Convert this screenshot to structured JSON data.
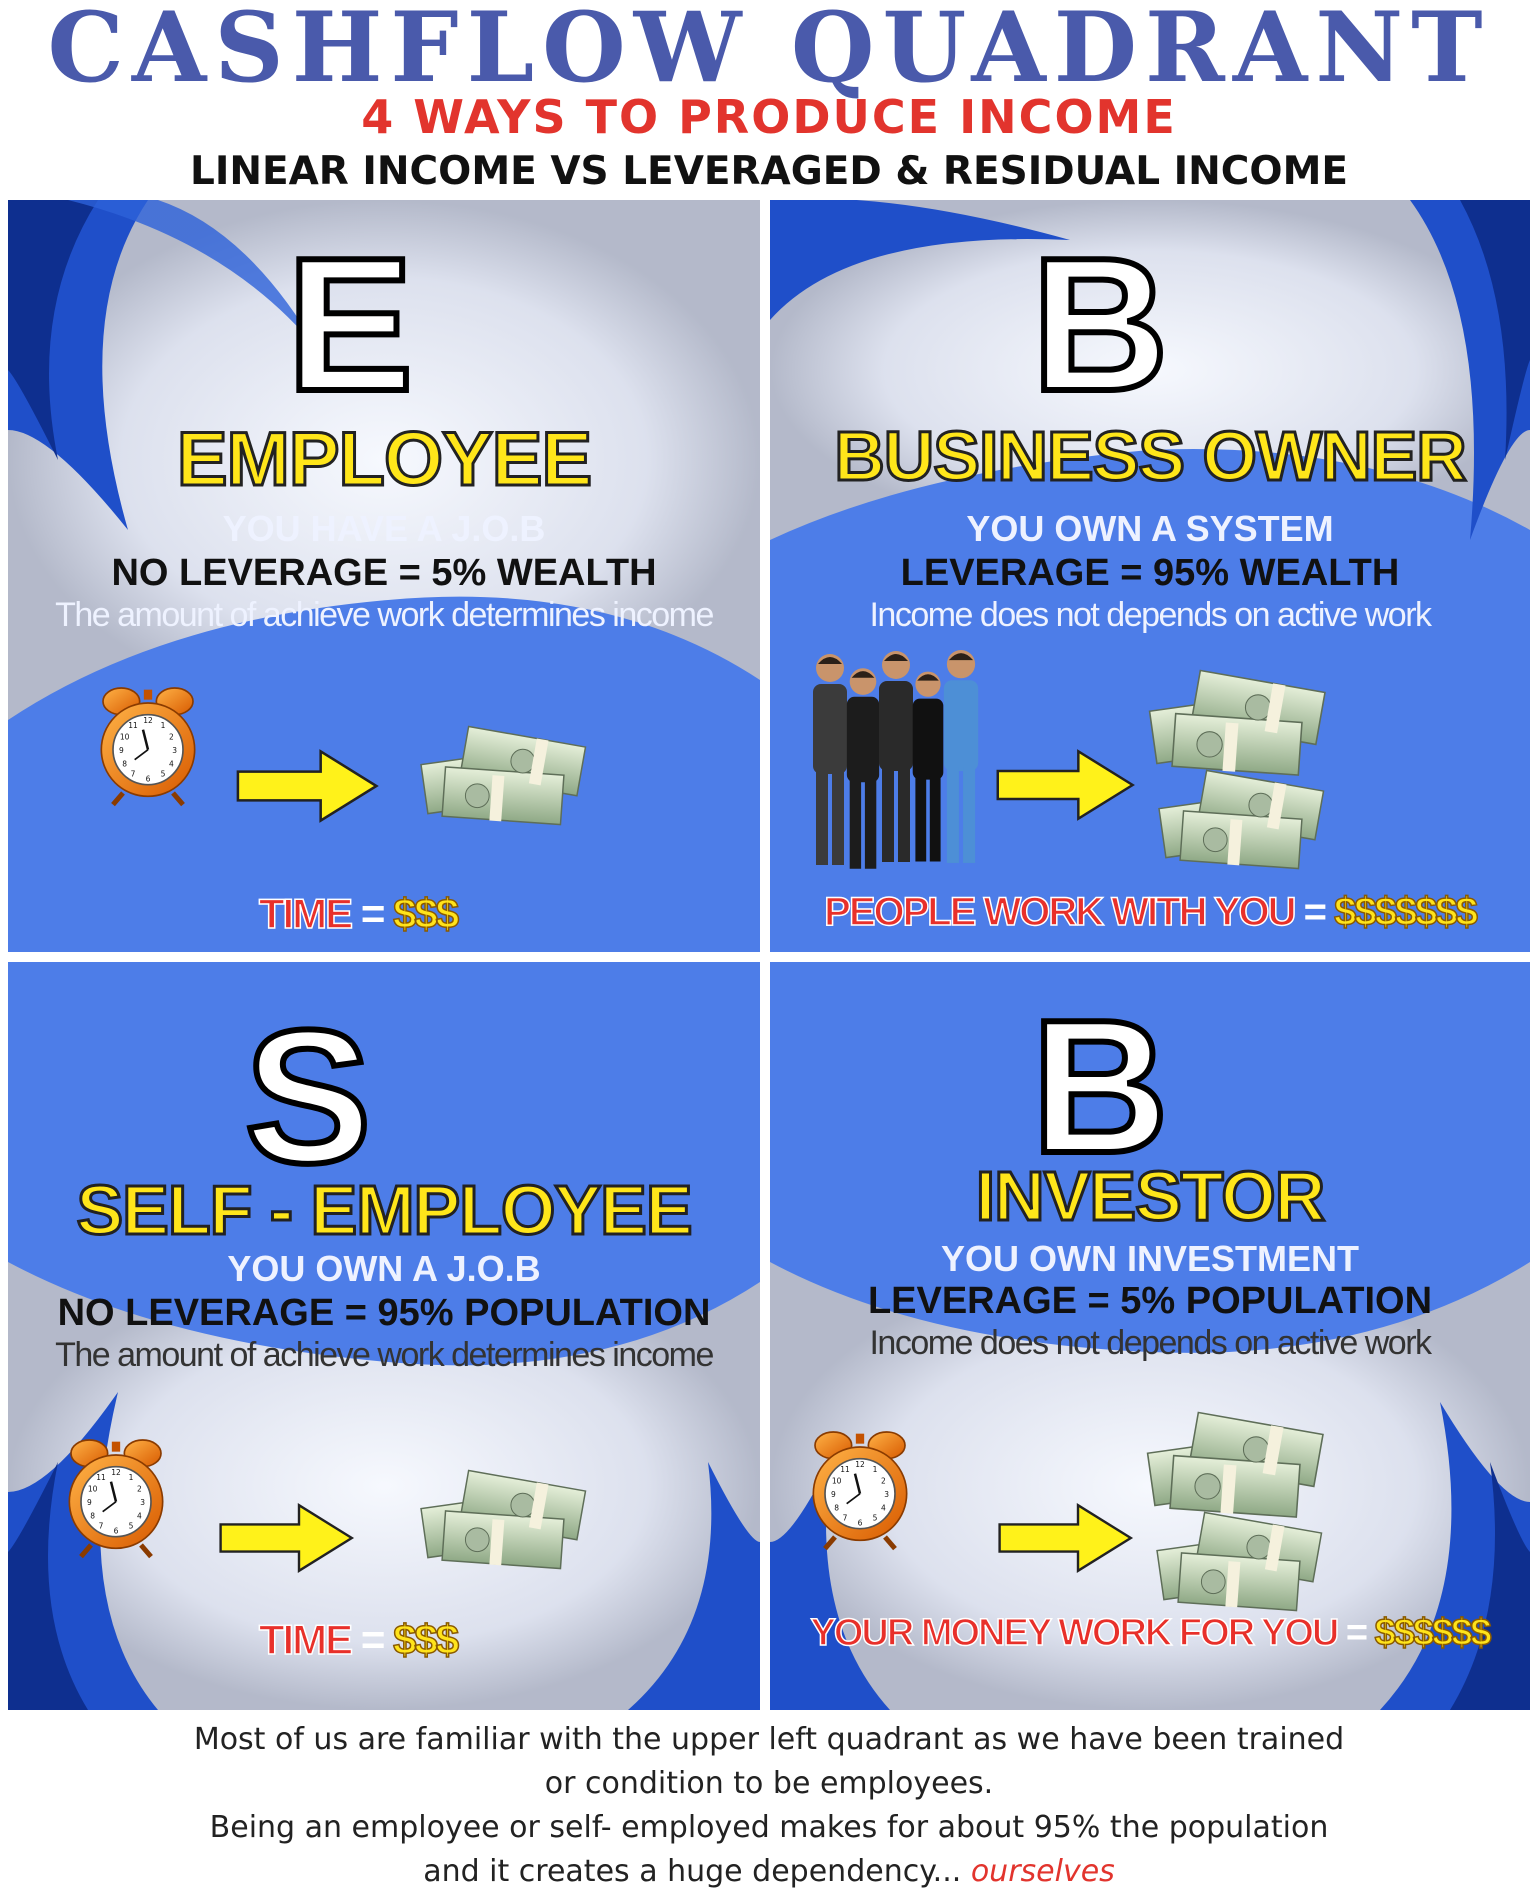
{
  "header": {
    "title": "CASHFLOW  QUADRANT",
    "subtitle": "4 WAYS TO PRODUCE INCOME",
    "tagline": "LINEAR INCOME VS LEVERAGED & RESIDUAL INCOME"
  },
  "quadrants": {
    "employee": {
      "letter": "E",
      "role": "EMPLOYEE",
      "line1": "YOU HAVE A J.O.B",
      "line2": "NO LEVERAGE = 5% WEALTH",
      "line3": "The amount of achieve work determines income",
      "formula_left": "TIME",
      "formula_eq": " = ",
      "formula_right": "$$$"
    },
    "business_owner": {
      "letter": "B",
      "role": "BUSINESS OWNER",
      "line1": "YOU OWN A SYSTEM",
      "line2": "LEVERAGE = 95% WEALTH",
      "line3": "Income  does not depends on active work",
      "formula_left": "PEOPLE  WORK  WITH YOU",
      "formula_eq": " = ",
      "formula_right": "$$$$$$$"
    },
    "self_employee": {
      "letter": "S",
      "role": "SELF - EMPLOYEE",
      "line1": "YOU OWN A  J.O.B",
      "line2": "NO LEVERAGE = 95% POPULATION",
      "line3": "The amount of achieve work determines income",
      "formula_left": "TIME",
      "formula_eq": " = ",
      "formula_right": "$$$"
    },
    "investor": {
      "letter": "B",
      "role": "INVESTOR",
      "line1": "YOU OWN INVESTMENT",
      "line2": "LEVERAGE = 5% POPULATION",
      "line3": "Income  does not depends on active work",
      "formula_left": "YOUR MONEY WORK FOR YOU",
      "formula_eq": " = ",
      "formula_right": "$$$$$$"
    }
  },
  "footer": {
    "line1": "Most of us are familiar with the upper left quadrant as we have been trained",
    "line2": "or condition to be employees.",
    "line3": "Being an employee or self- employed makes for about 95%  the population",
    "line4": "and it creates a huge dependency... ",
    "line4_emphasis": "ourselves"
  },
  "icons": [
    "alarm-clock-icon",
    "arrow-right-icon",
    "money-stack-icon",
    "business-team-icon"
  ],
  "colors": {
    "title": "#4a5aab",
    "subtitle": "#e2342d",
    "panel_blue": "#4d7de8",
    "role_yellow": "#ffe61a",
    "formula_red": "#e8302a"
  }
}
